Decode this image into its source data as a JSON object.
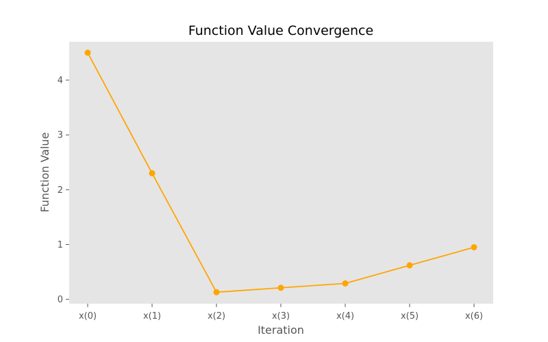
{
  "chart_data": {
    "type": "line",
    "title": "Function Value Convergence",
    "xlabel": "Iteration",
    "ylabel": "Function Value",
    "categories": [
      "x(0)",
      "x(1)",
      "x(2)",
      "x(3)",
      "x(4)",
      "x(5)",
      "x(6)"
    ],
    "values": [
      4.5,
      2.3,
      0.13,
      0.21,
      0.29,
      0.62,
      0.95
    ],
    "ylim": [
      -0.08,
      4.7
    ],
    "yticks": [
      0,
      1,
      2,
      3,
      4
    ],
    "grid": false,
    "colors": {
      "line": "#ffa500",
      "plot_background": "#e5e5e5",
      "tick": "#555555"
    }
  }
}
